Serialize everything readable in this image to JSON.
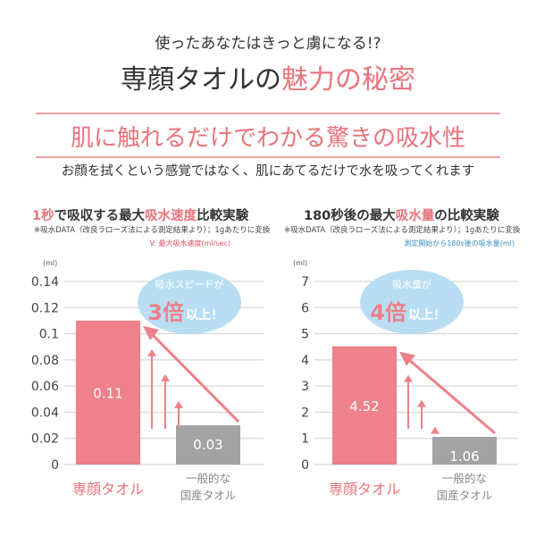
{
  "header": {
    "tagline": "使ったあなたはきっと虜になる!?",
    "title_a": "専顔タオルの",
    "title_b": "魅力の秘密",
    "band": "肌に触れるだけでわかる驚きの吸水性",
    "subtitle": "お顔を拭くという感覚ではなく、肌にあてるだけで水を吸ってくれます"
  },
  "colors": {
    "accent": "#e8747c",
    "bar_main": "#ee8189",
    "bar_other": "#a3a3a3",
    "bubble": "#b9def3",
    "legend_blue": "#3a8fc0"
  },
  "chart_data": [
    {
      "type": "bar",
      "title_a": "1秒",
      "title_b": "で吸収する最大",
      "title_c": "吸水速度",
      "title_d": "比較実験",
      "note": "※吸水DATA（改良ラローズ法による測定結果より）；1gあたりに変換",
      "legend": "V: 最大吸水速度(ml/sec)",
      "unit": "(ml)",
      "ylim": [
        0,
        0.14
      ],
      "ticks": [
        "0",
        "0.02",
        "0.04",
        "0.06",
        "0.08",
        "0.1",
        "0.12",
        "0.14"
      ],
      "categories": [
        "専顔タオル",
        "一般的な\n国産タオル"
      ],
      "cat_line1": "専顔タオル",
      "cat2_line1": "一般的な",
      "cat2_line2": "国産タオル",
      "values": [
        0.11,
        0.03
      ],
      "labels": [
        "0.11",
        "0.03"
      ],
      "bubble_top": "吸水スピードが",
      "bubble_big": "3倍",
      "bubble_rest": "以上！"
    },
    {
      "type": "bar",
      "title_a": "180秒後の最大",
      "title_b": "",
      "title_c": "吸水量",
      "title_d": "の比較実験",
      "note": "※吸水DATA（改良ラローズ法による測定結果より）；1gあたりに変換",
      "legend": "測定開始から180s後の吸水量(ml)",
      "unit": "(ml)",
      "ylim": [
        0,
        7
      ],
      "ticks": [
        "0",
        "1",
        "2",
        "3",
        "4",
        "5",
        "6",
        "7"
      ],
      "categories": [
        "専顔タオル",
        "一般的な\n国産タオル"
      ],
      "cat_line1": "専顔タオル",
      "cat2_line1": "一般的な",
      "cat2_line2": "国産タオル",
      "values": [
        4.52,
        1.06
      ],
      "labels": [
        "4.52",
        "1.06"
      ],
      "bubble_top": "吸水量が",
      "bubble_big": "4倍",
      "bubble_rest": "以上！"
    }
  ]
}
